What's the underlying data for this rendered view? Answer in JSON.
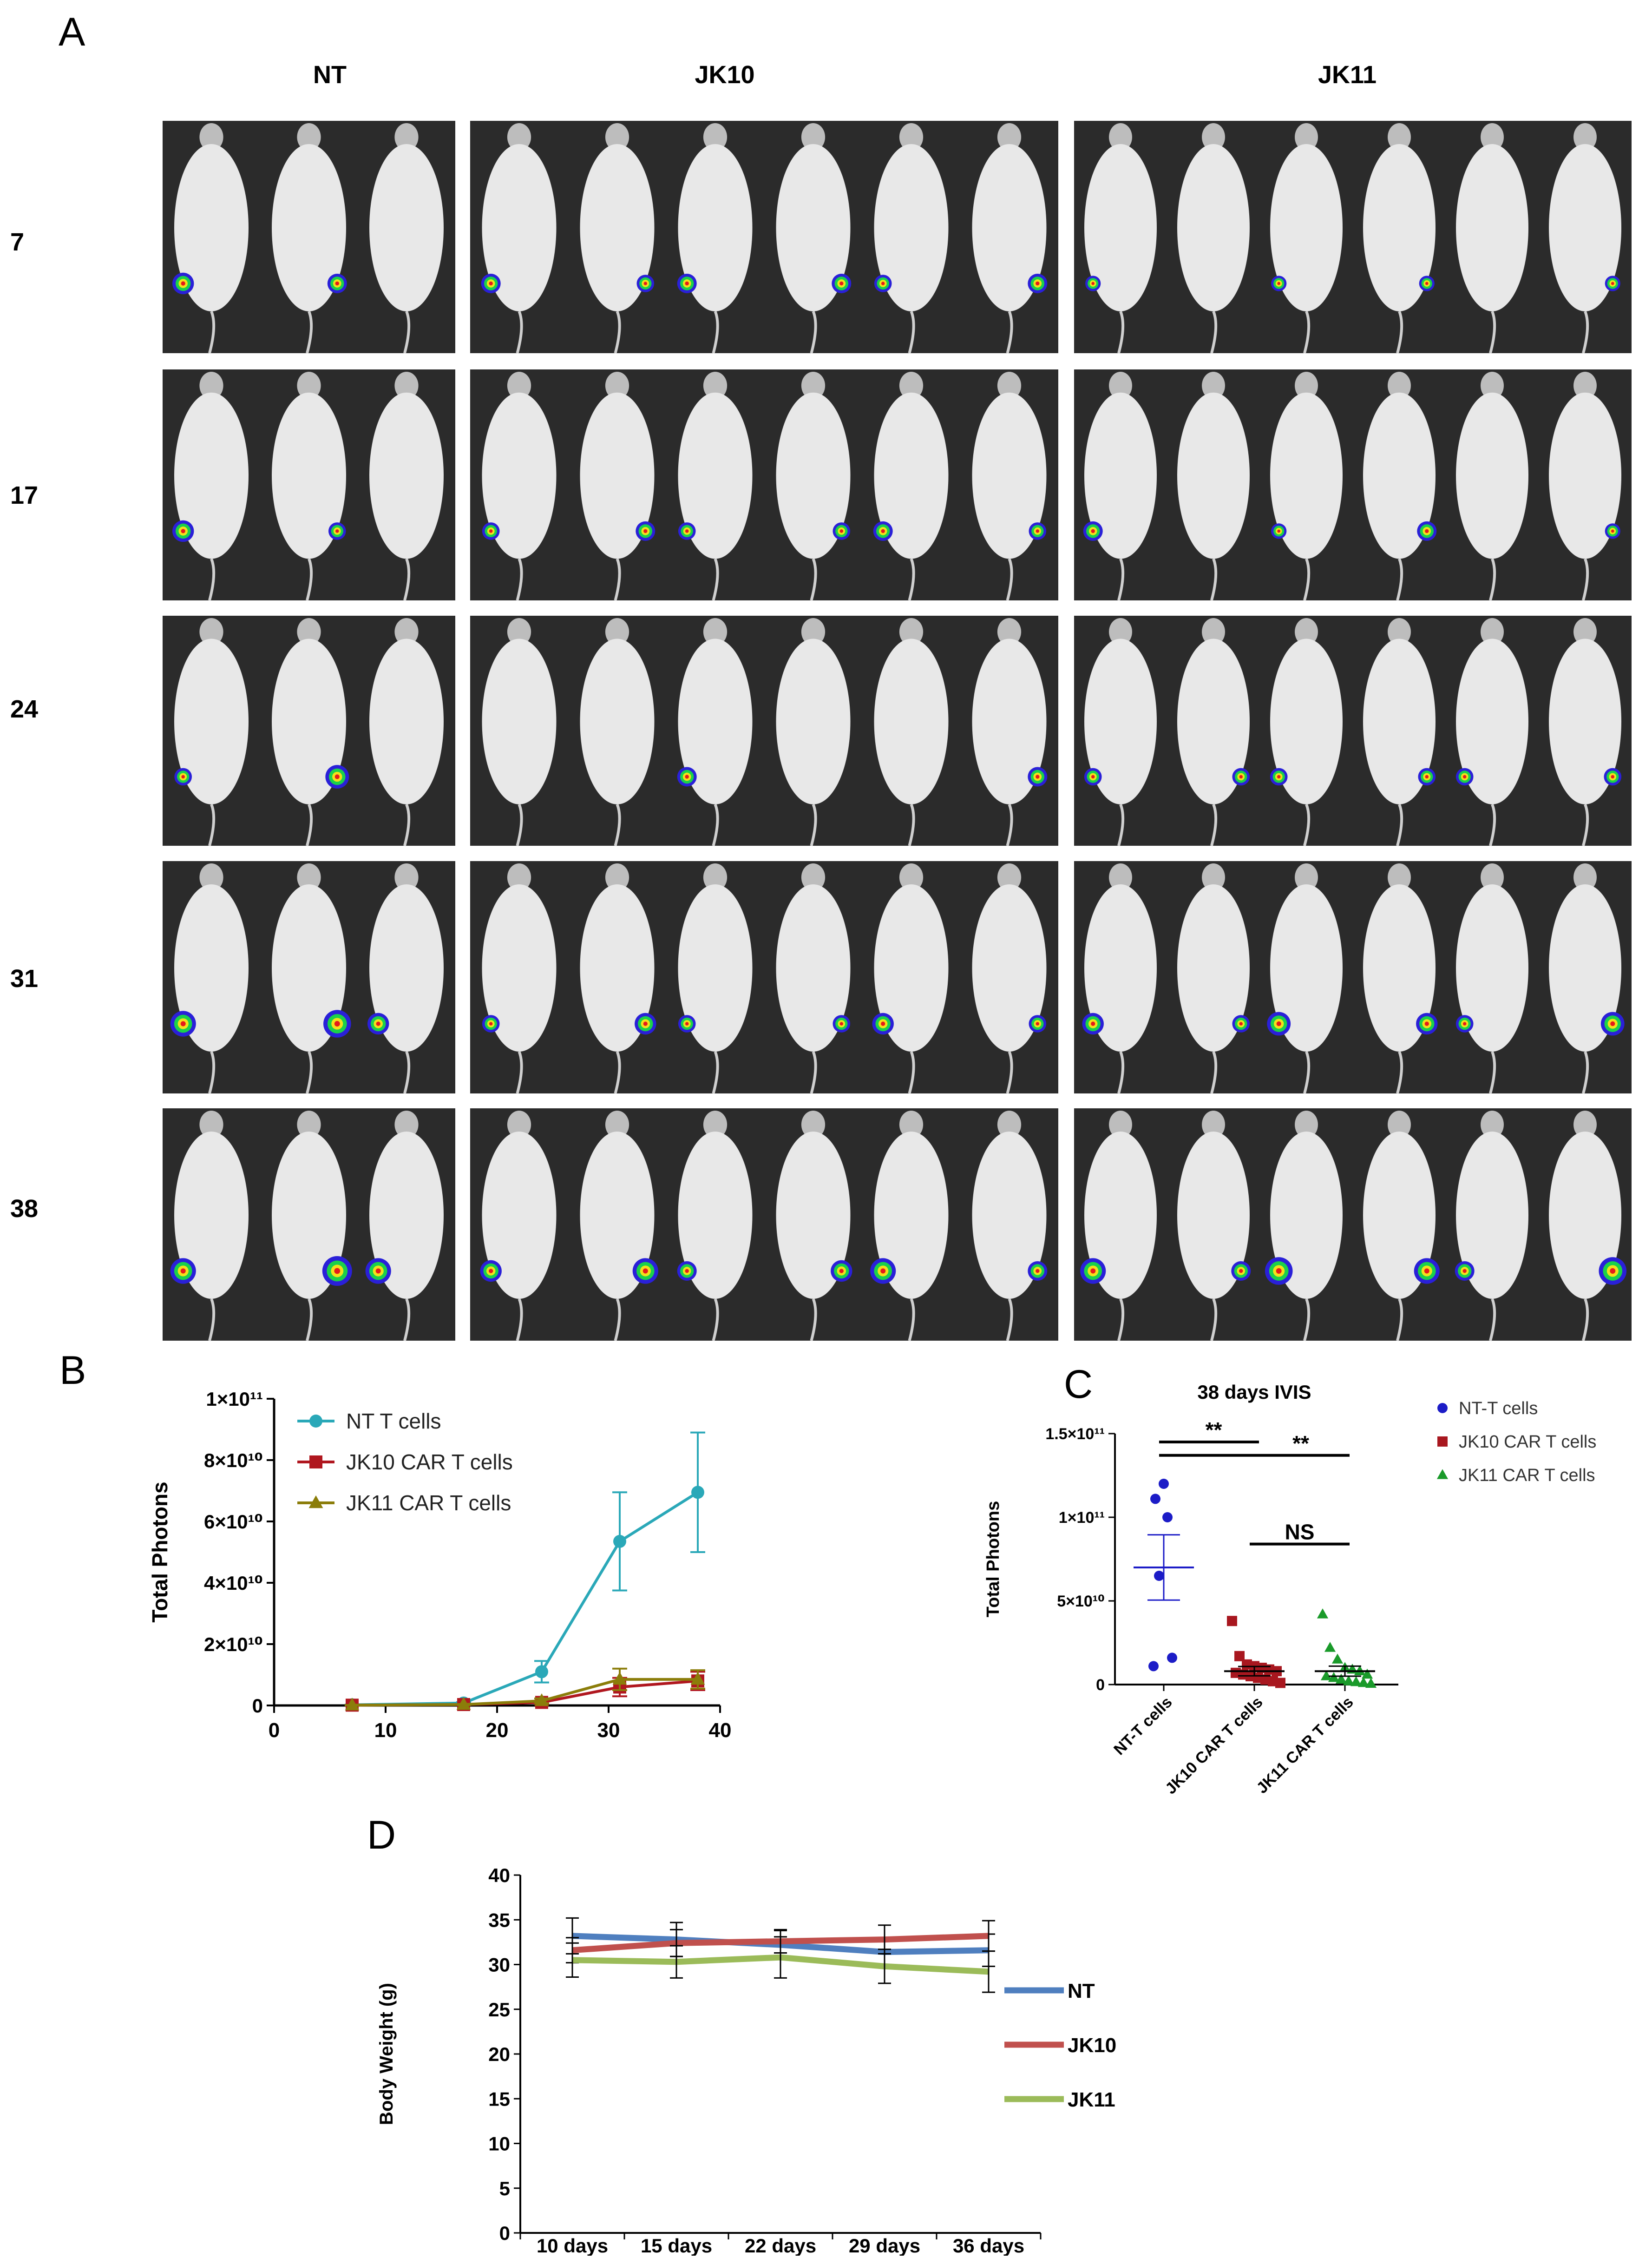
{
  "panel_letters": {
    "a": "A",
    "b": "B",
    "c": "C",
    "d": "D"
  },
  "panel_a": {
    "columns": [
      "NT",
      "JK10",
      "JK11"
    ],
    "rows": [
      "7",
      "17",
      "24",
      "31",
      "38"
    ],
    "mice_per_block": [
      3,
      6,
      6
    ],
    "signals": [
      [
        [
          0.6,
          0.5,
          0
        ],
        [
          0.5,
          0.4,
          0.5
        ],
        [
          0.3,
          0,
          0.3
        ]
      ],
      [
        [
          0.6,
          0.4,
          0
        ],
        [
          0.4,
          0.5,
          0.4
        ],
        [
          0.5,
          0,
          0.3
        ]
      ],
      [
        [
          0.4,
          0.7,
          0
        ],
        [
          0,
          0,
          0.5
        ],
        [
          0.4,
          0.4,
          0.4
        ]
      ],
      [
        [
          0.8,
          0.9,
          0.6
        ],
        [
          0.4,
          0.6,
          0.4
        ],
        [
          0.6,
          0.4,
          0.7
        ]
      ],
      [
        [
          0.8,
          1.0,
          0.8
        ],
        [
          0.6,
          0.8,
          0.5
        ],
        [
          0.8,
          0.5,
          0.9
        ]
      ]
    ],
    "colors": {
      "background": "#2b2b2b",
      "mouse": "#e8e8e8"
    }
  },
  "chart_b": {
    "type": "line",
    "ylabel": "Total Photons",
    "x_ticks": [
      "0",
      "10",
      "20",
      "30",
      "40"
    ],
    "y_ticks": [
      "0",
      "2×10¹⁰",
      "4×10¹⁰",
      "6×10¹⁰",
      "8×10¹⁰",
      "1×10¹¹"
    ],
    "xlim": [
      0,
      40
    ],
    "ylim": [
      0,
      100000000000
    ],
    "x": [
      7,
      17,
      24,
      31,
      38
    ],
    "series": [
      {
        "name": "NT T cells",
        "color": "#2aa8b8",
        "marker": "circle",
        "values": [
          200000000,
          800000000,
          11000000000,
          53500000000,
          69500000000
        ],
        "errors": [
          100000000,
          300000000,
          3500000000,
          16000000000,
          19500000000
        ]
      },
      {
        "name": "JK10 CAR T cells",
        "color": "#b0171f",
        "marker": "square",
        "values": [
          100000000,
          300000000,
          1000000000,
          6000000000,
          8000000000
        ],
        "errors": [
          50000000,
          150000000,
          600000000,
          3000000000,
          3000000000
        ]
      },
      {
        "name": "JK11 CAR T cells",
        "color": "#8b7d0a",
        "marker": "triangle",
        "values": [
          100000000,
          300000000,
          1500000000,
          8500000000,
          8500000000
        ],
        "errors": [
          50000000,
          150000000,
          800000000,
          3500000000,
          3000000000
        ]
      }
    ]
  },
  "chart_c": {
    "type": "scatter",
    "title": "38 days IVIS",
    "ylabel": "Total Photons",
    "y_ticks": [
      "0",
      "5×10¹⁰",
      "1×10¹¹",
      "1.5×10¹¹"
    ],
    "ylim": [
      0,
      150000000000
    ],
    "categories": [
      "NT-T cells",
      "JK10 CAR T cells",
      "JK11 CAR T cells"
    ],
    "series": [
      {
        "name": "NT-T cells",
        "color": "#1c1cc7",
        "marker": "circle",
        "values": [
          120000000000,
          111000000000,
          100000000000,
          65000000000,
          16000000000,
          11000000000
        ],
        "mean": 70000000000,
        "sem": 19500000000
      },
      {
        "name": "JK10 CAR T cells",
        "color": "#a8171f",
        "marker": "square",
        "values": [
          38000000000,
          17000000000,
          12000000000,
          11000000000,
          10000000000,
          9000000000,
          8000000000,
          7000000000,
          6000000000,
          5000000000,
          4000000000,
          3000000000,
          2000000000,
          1000000000
        ],
        "mean": 8000000000,
        "sem": 2800000000
      },
      {
        "name": "JK11 CAR T cells",
        "color": "#1a9a2a",
        "marker": "triangle",
        "values": [
          42000000000,
          22000000000,
          15000000000,
          10000000000,
          9000000000,
          8000000000,
          6000000000,
          5000000000,
          4000000000,
          3000000000,
          2000000000,
          1500000000,
          1000000000,
          500000000
        ],
        "mean": 8000000000,
        "sem": 3000000000
      }
    ],
    "annotations": [
      {
        "text": "**",
        "from": 0,
        "to": 1,
        "y": 145000000000
      },
      {
        "text": "**",
        "from": 0,
        "to": 2,
        "y": 137000000000
      },
      {
        "text": "NS",
        "from": 1,
        "to": 2,
        "y": 84000000000
      }
    ]
  },
  "chart_d": {
    "type": "line",
    "ylabel": "Body Weight (g)",
    "categories": [
      "10 days",
      "15 days",
      "22 days",
      "29 days",
      "36 days"
    ],
    "y_ticks": [
      "0",
      "5",
      "10",
      "15",
      "20",
      "25",
      "30",
      "35",
      "40"
    ],
    "ylim": [
      0,
      40
    ],
    "series": [
      {
        "name": "NT",
        "color": "#4f7fbf",
        "values": [
          33.2,
          32.8,
          32.2,
          31.4,
          31.6
        ],
        "errors": [
          2.0,
          1.9,
          1.6,
          1.4,
          1.8
        ]
      },
      {
        "name": "JK10",
        "color": "#c0504d",
        "values": [
          31.6,
          32.4,
          32.6,
          32.8,
          33.2
        ],
        "errors": [
          1.4,
          1.5,
          1.3,
          1.6,
          1.7
        ]
      },
      {
        "name": "JK11",
        "color": "#9bbb59",
        "values": [
          30.5,
          30.3,
          30.8,
          29.8,
          29.2
        ],
        "errors": [
          1.9,
          1.8,
          2.3,
          1.9,
          2.3
        ]
      }
    ]
  }
}
